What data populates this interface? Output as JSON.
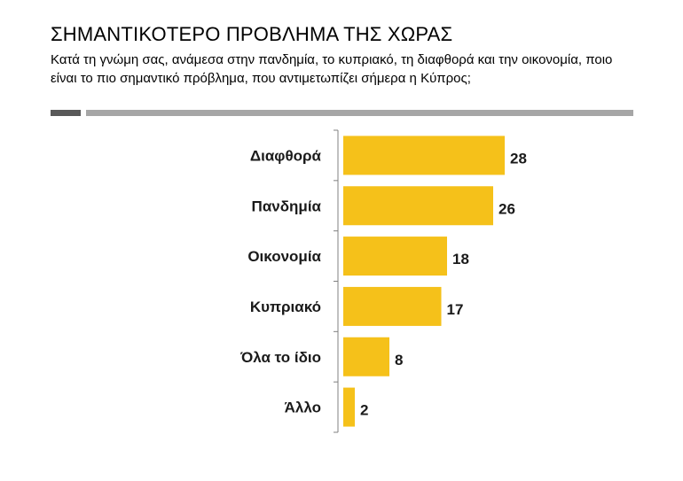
{
  "header": {
    "title": "ΣΗΜΑΝΤΙΚΟΤΕΡΟ ΠΡΟΒΛΗΜΑ ΤΗΣ ΧΩΡΑΣ",
    "subtitle": "Κατά τη γνώμη σας, ανάμεσα στην πανδημία, το κυπριακό, τη διαφθορά και την οικονομία, ποιο είναι το πιο σημαντικό πρόβλημα, που αντιμετωπίζει σήμερα η Κύπρος;"
  },
  "colors": {
    "bar": "#f5c11a",
    "axis": "#808080",
    "rule_dark": "#595959",
    "rule_light": "#a6a6a6"
  },
  "chart_data": {
    "type": "bar",
    "orientation": "horizontal",
    "title": "ΣΗΜΑΝΤΙΚΟΤΕΡΟ ΠΡΟΒΛΗΜΑ ΤΗΣ ΧΩΡΑΣ",
    "categories": [
      "Διαφθορά",
      "Πανδημία",
      "Οικονομία",
      "Κυπριακό",
      "Όλα το ίδιο",
      "Άλλο"
    ],
    "values": [
      28,
      26,
      18,
      17,
      8,
      2
    ],
    "xlabel": "",
    "ylabel": "",
    "xlim": [
      0,
      30
    ],
    "grid": false,
    "legend": "none",
    "data_labels": true
  }
}
